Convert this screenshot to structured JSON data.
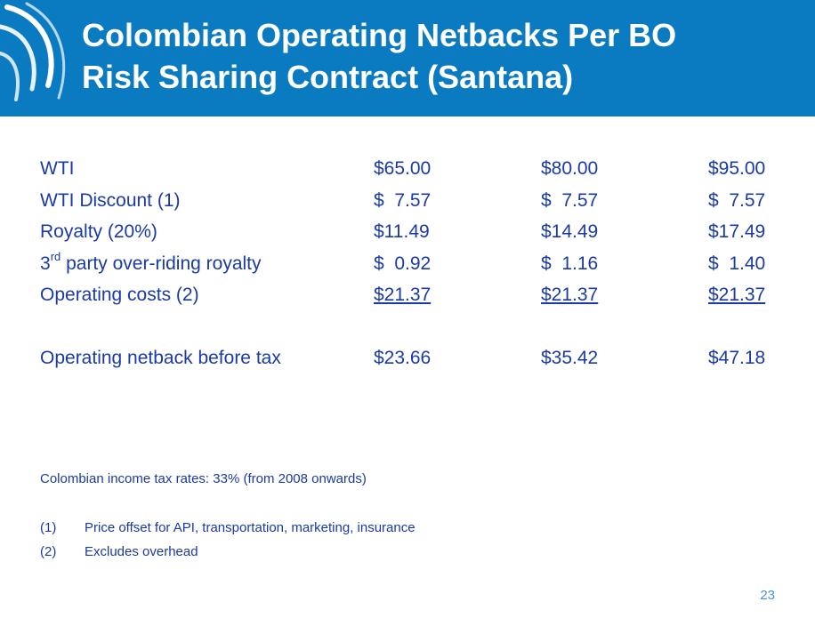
{
  "slide": {
    "title_line1": "Colombian Operating Netbacks Per BO",
    "title_line2": "Risk Sharing Contract (Santana)",
    "page_number": "23",
    "colors": {
      "header": "#0b7bc1",
      "text": "#1a3aa6",
      "page_number": "#4d8fcf"
    }
  },
  "table": {
    "rows": [
      {
        "label": "WTI",
        "values": [
          "$65.00",
          "$80.00",
          "$95.00"
        ]
      },
      {
        "label": "WTI Discount (1)",
        "values": [
          "$  7.57",
          "$  7.57",
          "$  7.57"
        ]
      },
      {
        "label": "Royalty (20%)",
        "values": [
          "$11.49",
          "$14.49",
          "$17.49"
        ]
      },
      {
        "label_prefix": "3",
        "label_sup": "rd",
        "label_rest": " party over-riding royalty",
        "values": [
          "$  0.92",
          "$  1.16",
          "$  1.40"
        ]
      },
      {
        "label": "Operating costs (2)",
        "values": [
          "$21.37",
          "$21.37",
          "$21.37"
        ]
      },
      {
        "label": "Operating netback before tax",
        "values": [
          "$23.66",
          "$35.42",
          "$47.18"
        ]
      }
    ]
  },
  "notes": {
    "tax": "Colombian income tax rates: 33% (from 2008 onwards)",
    "footnotes": [
      {
        "mark": "(1)",
        "text": "Price offset for API, transportation, marketing, insurance"
      },
      {
        "mark": "(2)",
        "text": "Excludes overhead"
      }
    ]
  }
}
